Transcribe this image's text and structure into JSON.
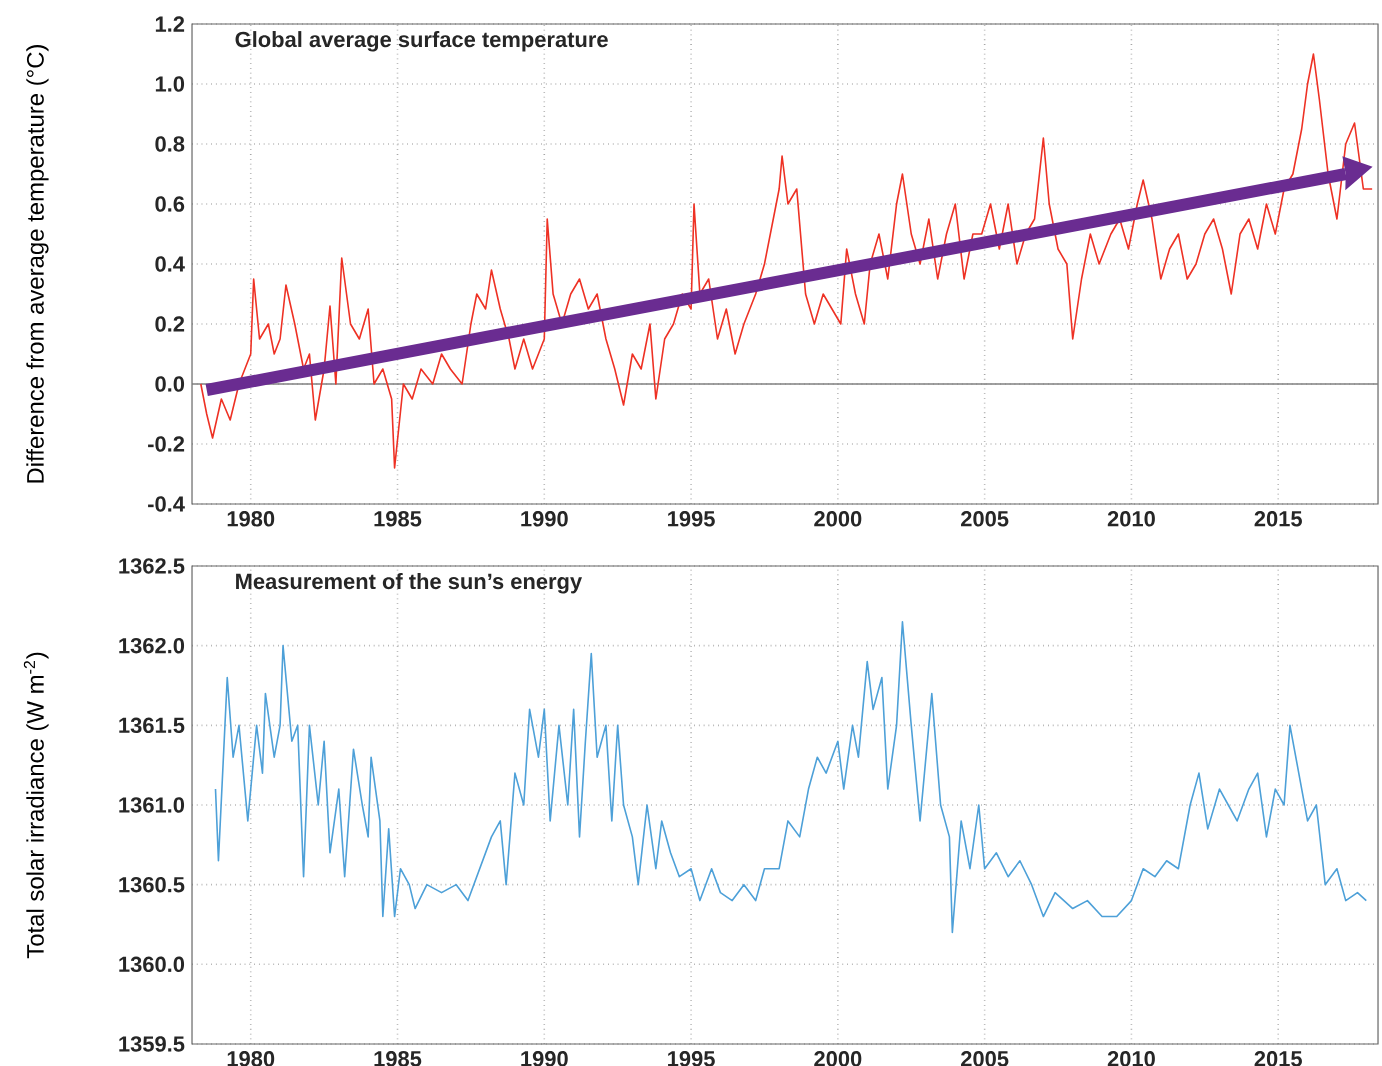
{
  "chart_data": [
    {
      "type": "line",
      "title": "Global average surface temperature",
      "ylabel": "Difference from average temperature (°C)",
      "xlim": [
        1978,
        2018.4
      ],
      "ylim": [
        -0.4,
        1.2
      ],
      "xticks": [
        1980,
        1985,
        1990,
        1995,
        2000,
        2005,
        2010,
        2015
      ],
      "yticks": [
        -0.4,
        -0.2,
        {
          "value": 0.0,
          "label": "0.0"
        },
        0.2,
        0.4,
        0.6,
        0.8,
        {
          "value": 1.0,
          "label": "1.0"
        },
        1.2
      ],
      "grid": true,
      "ref_lines": [
        {
          "axis": "y",
          "value": 0,
          "color": "#808080"
        }
      ],
      "series": [
        {
          "color": "#ee3124",
          "x": [
            1978.3,
            1978.5,
            1978.7,
            1979.0,
            1979.3,
            1979.6,
            1980.0,
            1980.1,
            1980.3,
            1980.6,
            1980.8,
            1981.0,
            1981.2,
            1981.5,
            1981.8,
            1982.0,
            1982.2,
            1982.5,
            1982.7,
            1982.9,
            1983.1,
            1983.4,
            1983.7,
            1984.0,
            1984.2,
            1984.5,
            1984.8,
            1984.9,
            1985.2,
            1985.5,
            1985.8,
            1986.2,
            1986.5,
            1986.8,
            1987.2,
            1987.5,
            1987.7,
            1988.0,
            1988.2,
            1988.5,
            1988.8,
            1989.0,
            1989.3,
            1989.6,
            1990.0,
            1990.1,
            1990.3,
            1990.6,
            1990.9,
            1991.2,
            1991.5,
            1991.8,
            1992.1,
            1992.4,
            1992.7,
            1993.0,
            1993.3,
            1993.6,
            1993.8,
            1994.1,
            1994.4,
            1994.7,
            1995.0,
            1995.1,
            1995.3,
            1995.6,
            1995.9,
            1996.2,
            1996.5,
            1996.8,
            1997.2,
            1997.5,
            1997.8,
            1998.0,
            1998.1,
            1998.3,
            1998.6,
            1998.9,
            1999.2,
            1999.5,
            1999.8,
            2000.1,
            2000.3,
            2000.6,
            2000.9,
            2001.1,
            2001.4,
            2001.7,
            2002.0,
            2002.2,
            2002.5,
            2002.8,
            2003.1,
            2003.4,
            2003.7,
            2004.0,
            2004.3,
            2004.6,
            2004.9,
            2005.2,
            2005.5,
            2005.8,
            2006.1,
            2006.4,
            2006.7,
            2007.0,
            2007.2,
            2007.5,
            2007.8,
            2008.0,
            2008.3,
            2008.6,
            2008.9,
            2009.3,
            2009.6,
            2009.9,
            2010.2,
            2010.4,
            2010.7,
            2011.0,
            2011.3,
            2011.6,
            2011.9,
            2012.2,
            2012.5,
            2012.8,
            2013.1,
            2013.4,
            2013.7,
            2014.0,
            2014.3,
            2014.6,
            2014.9,
            2015.2,
            2015.5,
            2015.8,
            2016.0,
            2016.2,
            2016.4,
            2016.7,
            2017.0,
            2017.3,
            2017.6,
            2017.9,
            2018.2
          ],
          "values": [
            0.0,
            -0.1,
            -0.18,
            -0.05,
            -0.12,
            0.0,
            0.1,
            0.35,
            0.15,
            0.2,
            0.1,
            0.15,
            0.33,
            0.2,
            0.05,
            0.1,
            -0.12,
            0.05,
            0.26,
            0.0,
            0.42,
            0.2,
            0.15,
            0.25,
            0.0,
            0.05,
            -0.05,
            -0.28,
            0.0,
            -0.05,
            0.05,
            0.0,
            0.1,
            0.05,
            0.0,
            0.2,
            0.3,
            0.25,
            0.38,
            0.25,
            0.15,
            0.05,
            0.15,
            0.05,
            0.15,
            0.55,
            0.3,
            0.2,
            0.3,
            0.35,
            0.25,
            0.3,
            0.15,
            0.05,
            -0.07,
            0.1,
            0.05,
            0.2,
            -0.05,
            0.15,
            0.2,
            0.3,
            0.25,
            0.6,
            0.3,
            0.35,
            0.15,
            0.25,
            0.1,
            0.2,
            0.3,
            0.4,
            0.55,
            0.65,
            0.76,
            0.6,
            0.65,
            0.3,
            0.2,
            0.3,
            0.25,
            0.2,
            0.45,
            0.3,
            0.2,
            0.4,
            0.5,
            0.35,
            0.6,
            0.7,
            0.5,
            0.4,
            0.55,
            0.35,
            0.5,
            0.6,
            0.35,
            0.5,
            0.5,
            0.6,
            0.45,
            0.6,
            0.4,
            0.5,
            0.55,
            0.82,
            0.6,
            0.45,
            0.4,
            0.15,
            0.35,
            0.5,
            0.4,
            0.5,
            0.55,
            0.45,
            0.6,
            0.68,
            0.55,
            0.35,
            0.45,
            0.5,
            0.35,
            0.4,
            0.5,
            0.55,
            0.45,
            0.3,
            0.5,
            0.55,
            0.45,
            0.6,
            0.5,
            0.65,
            0.7,
            0.85,
            1.0,
            1.1,
            0.95,
            0.7,
            0.55,
            0.8,
            0.87,
            0.65,
            0.65
          ]
        },
        {
          "type": "line",
          "color": "#6a2c91",
          "x": [
            1978.5,
            2017.3
          ],
          "values": [
            -0.02,
            0.7
          ]
        }
      ]
    },
    {
      "type": "line",
      "title": "Measurement of the sun’s energy",
      "ylabel": "Total solar irradiance (W m$^{-2}$)",
      "xlim": [
        1978,
        2018.4
      ],
      "ylim": [
        1359.5,
        1362.5
      ],
      "xticks": [
        1980,
        1985,
        1990,
        1995,
        2000,
        2005,
        2010,
        2015
      ],
      "yticks": [
        1359.5,
        {
          "value": 1360.0,
          "label": "1360.0"
        },
        1360.5,
        {
          "value": 1361.0,
          "label": "1361.0"
        },
        1361.5,
        {
          "value": 1362.0,
          "label": "1362.0"
        },
        1362.5
      ],
      "grid": true,
      "series": [
        {
          "color": "#4da0d8",
          "x": [
            1978.8,
            1978.9,
            1979.2,
            1979.4,
            1979.6,
            1979.9,
            1980.2,
            1980.4,
            1980.5,
            1980.8,
            1981.0,
            1981.1,
            1981.4,
            1981.6,
            1981.8,
            1982.0,
            1982.3,
            1982.5,
            1982.7,
            1983.0,
            1983.2,
            1983.5,
            1983.8,
            1984.0,
            1984.1,
            1984.4,
            1984.5,
            1984.7,
            1984.9,
            1985.1,
            1985.4,
            1985.6,
            1986.0,
            1986.5,
            1987.0,
            1987.4,
            1987.8,
            1988.2,
            1988.5,
            1988.7,
            1989.0,
            1989.3,
            1989.5,
            1989.8,
            1990.0,
            1990.2,
            1990.5,
            1990.8,
            1991.0,
            1991.2,
            1991.4,
            1991.6,
            1991.8,
            1992.1,
            1992.3,
            1992.5,
            1992.7,
            1993.0,
            1993.2,
            1993.5,
            1993.8,
            1994.0,
            1994.3,
            1994.6,
            1995.0,
            1995.3,
            1995.7,
            1996.0,
            1996.4,
            1996.8,
            1997.2,
            1997.5,
            1998.0,
            1998.3,
            1998.7,
            1999.0,
            1999.3,
            1999.6,
            2000.0,
            2000.2,
            2000.5,
            2000.7,
            2001.0,
            2001.2,
            2001.5,
            2001.7,
            2002.0,
            2002.2,
            2002.5,
            2002.8,
            2003.0,
            2003.2,
            2003.5,
            2003.8,
            2003.9,
            2004.2,
            2004.5,
            2004.8,
            2005.0,
            2005.4,
            2005.8,
            2006.2,
            2006.6,
            2007.0,
            2007.4,
            2008.0,
            2008.5,
            2009.0,
            2009.5,
            2010.0,
            2010.4,
            2010.8,
            2011.2,
            2011.6,
            2012.0,
            2012.3,
            2012.6,
            2013.0,
            2013.3,
            2013.6,
            2014.0,
            2014.3,
            2014.6,
            2014.9,
            2015.2,
            2015.4,
            2015.7,
            2016.0,
            2016.3,
            2016.6,
            2017.0,
            2017.3,
            2017.7,
            2018.0
          ],
          "values": [
            1361.1,
            1360.65,
            1361.8,
            1361.3,
            1361.5,
            1360.9,
            1361.5,
            1361.2,
            1361.7,
            1361.3,
            1361.5,
            1362.0,
            1361.4,
            1361.5,
            1360.55,
            1361.5,
            1361.0,
            1361.4,
            1360.7,
            1361.1,
            1360.55,
            1361.35,
            1361.0,
            1360.8,
            1361.3,
            1360.9,
            1360.3,
            1360.85,
            1360.3,
            1360.6,
            1360.5,
            1360.35,
            1360.5,
            1360.45,
            1360.5,
            1360.4,
            1360.6,
            1360.8,
            1360.9,
            1360.5,
            1361.2,
            1361.0,
            1361.6,
            1361.3,
            1361.6,
            1360.9,
            1361.5,
            1361.0,
            1361.6,
            1360.8,
            1361.4,
            1361.95,
            1361.3,
            1361.5,
            1360.9,
            1361.5,
            1361.0,
            1360.8,
            1360.5,
            1361.0,
            1360.6,
            1360.9,
            1360.7,
            1360.55,
            1360.6,
            1360.4,
            1360.6,
            1360.45,
            1360.4,
            1360.5,
            1360.4,
            1360.6,
            1360.6,
            1360.9,
            1360.8,
            1361.1,
            1361.3,
            1361.2,
            1361.4,
            1361.1,
            1361.5,
            1361.3,
            1361.9,
            1361.6,
            1361.8,
            1361.1,
            1361.5,
            1362.15,
            1361.5,
            1360.9,
            1361.3,
            1361.7,
            1361.0,
            1360.8,
            1360.2,
            1360.9,
            1360.6,
            1361.0,
            1360.6,
            1360.7,
            1360.55,
            1360.65,
            1360.5,
            1360.3,
            1360.45,
            1360.35,
            1360.4,
            1360.3,
            1360.3,
            1360.4,
            1360.6,
            1360.55,
            1360.65,
            1360.6,
            1361.0,
            1361.2,
            1360.85,
            1361.1,
            1361.0,
            1360.9,
            1361.1,
            1361.2,
            1360.8,
            1361.1,
            1361.0,
            1361.5,
            1361.2,
            1360.9,
            1361.0,
            1360.5,
            1360.6,
            1360.4,
            1360.45,
            1360.4
          ]
        }
      ]
    }
  ]
}
